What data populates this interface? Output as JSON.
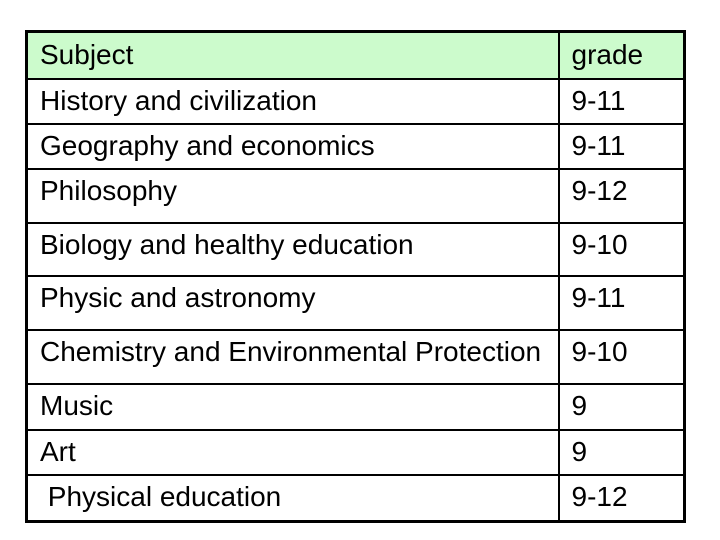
{
  "chart_data": {
    "type": "table",
    "columns": [
      "Subject",
      "grade"
    ],
    "rows": [
      [
        "History and civilization",
        "9-11"
      ],
      [
        "Geography and economics",
        "9-11"
      ],
      [
        "Philosophy",
        "9-12"
      ],
      [
        "Biology and healthy education",
        "9-10"
      ],
      [
        "Physic and astronomy",
        "9-11"
      ],
      [
        "Chemistry and Environmental Protection",
        "9-10"
      ],
      [
        "Music",
        "9"
      ],
      [
        "Art",
        "9"
      ],
      [
        " Physical education",
        "9-12"
      ]
    ]
  },
  "colors": {
    "header_bg": "#ccfbcc",
    "row_bg": "#ffffff",
    "border": "#000000",
    "text": "#000000",
    "page_bg": "#ffffff"
  }
}
